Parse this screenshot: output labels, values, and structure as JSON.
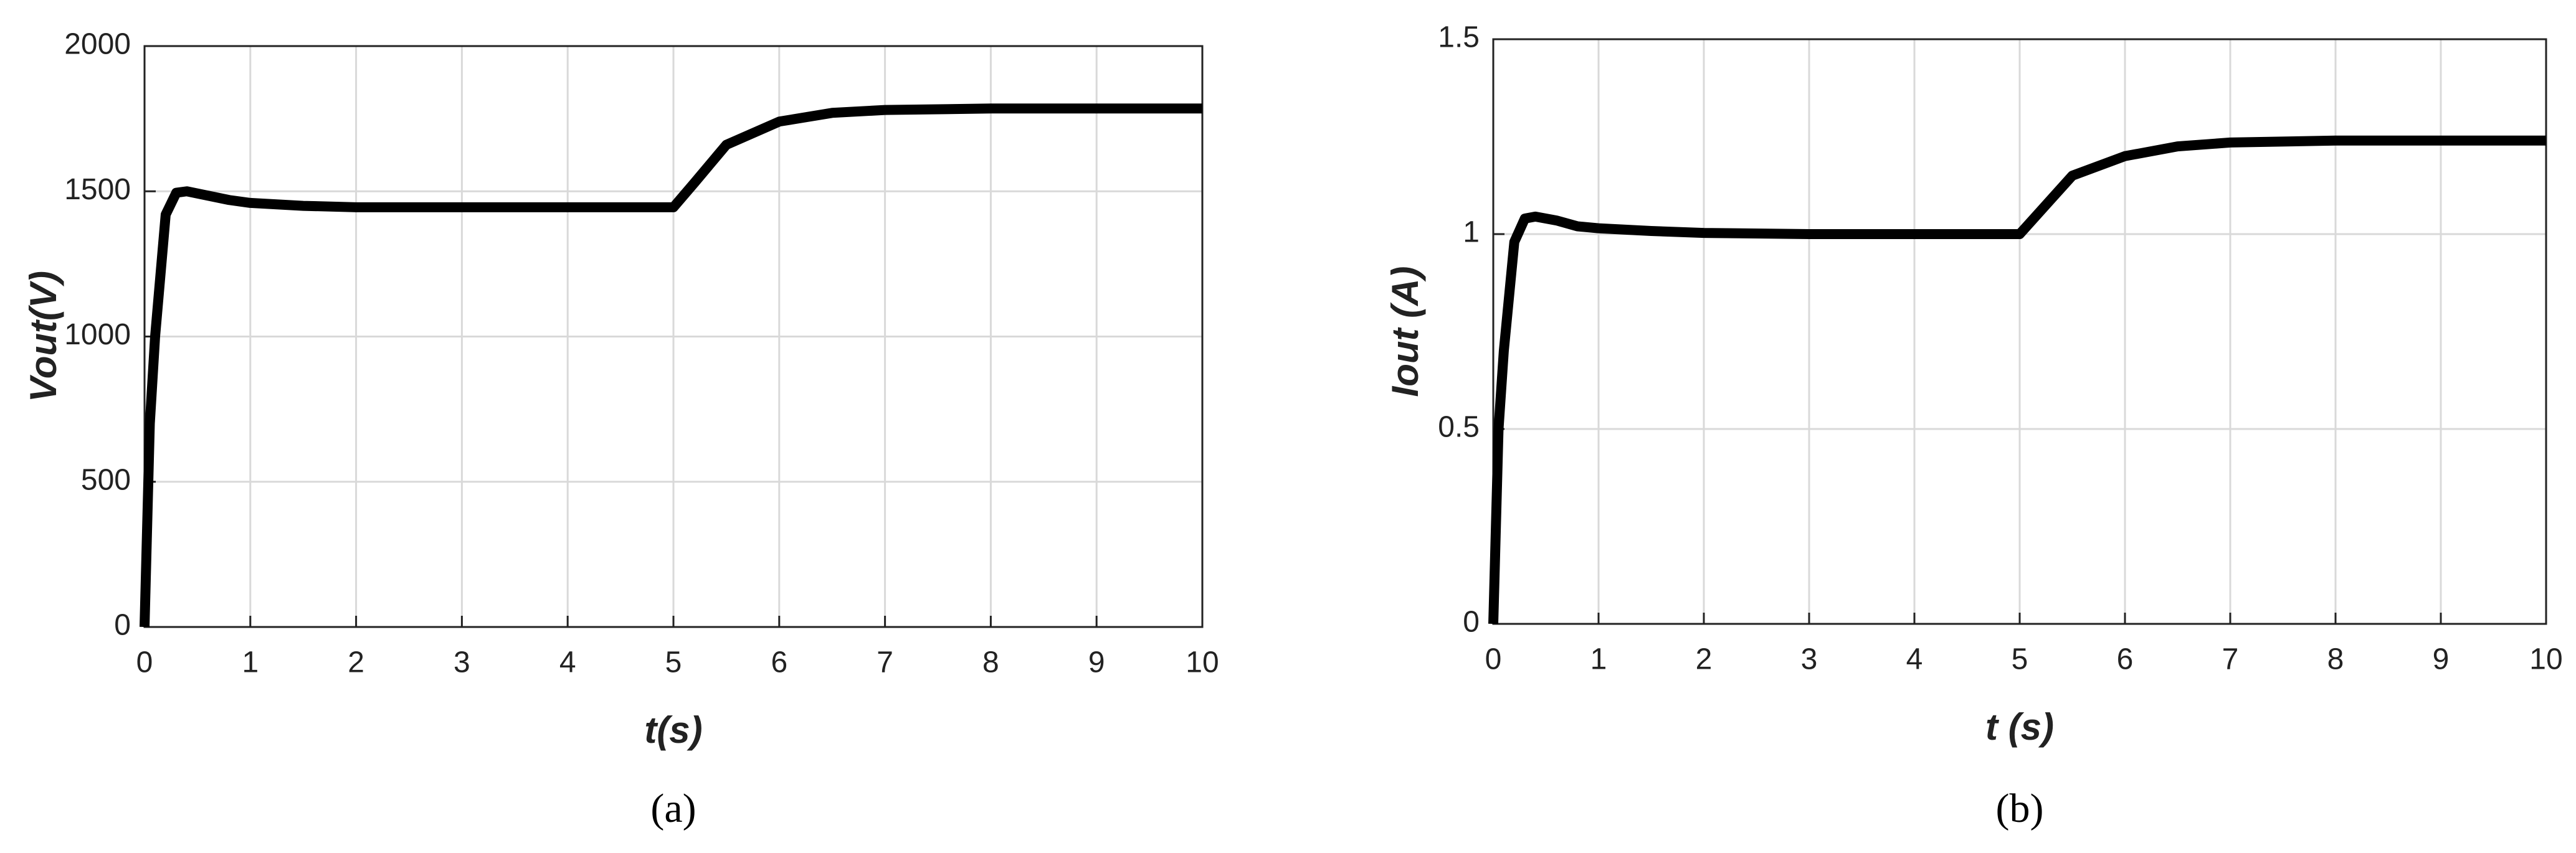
{
  "chart_data": [
    {
      "type": "line",
      "y_label": "Vout(V)",
      "x_label": "t(s)",
      "caption": "(a)",
      "x": [
        0,
        0.05,
        0.1,
        0.2,
        0.3,
        0.4,
        0.6,
        0.8,
        1,
        1.5,
        2,
        3,
        4,
        5,
        5.2,
        5.5,
        6,
        6.5,
        7,
        8,
        9,
        10
      ],
      "series": [
        {
          "color": "#000000",
          "values": [
            0,
            700,
            1000,
            1420,
            1495,
            1500,
            1485,
            1470,
            1460,
            1450,
            1445,
            1445,
            1445,
            1445,
            1530,
            1660,
            1740,
            1770,
            1780,
            1785,
            1785,
            1785
          ]
        }
      ],
      "xlim": [
        0,
        10
      ],
      "xticks": [
        0,
        1,
        2,
        3,
        4,
        5,
        6,
        7,
        8,
        9,
        10
      ],
      "ylim": [
        0,
        2000
      ],
      "yticks": [
        0,
        500,
        1000,
        1500,
        2000
      ],
      "grid": true
    },
    {
      "type": "line",
      "y_label": "Iout (A)",
      "x_label": "t (s)",
      "caption": "(b)",
      "x": [
        0,
        0.05,
        0.1,
        0.2,
        0.3,
        0.4,
        0.6,
        0.8,
        1,
        1.5,
        2,
        3,
        4,
        5,
        5.2,
        5.5,
        6,
        6.5,
        7,
        8,
        9,
        10
      ],
      "series": [
        {
          "color": "#000000",
          "values": [
            0,
            0.5,
            0.7,
            0.98,
            1.04,
            1.045,
            1.035,
            1.02,
            1.015,
            1.008,
            1.003,
            1.0,
            1.0,
            1.0,
            1.06,
            1.15,
            1.2,
            1.225,
            1.235,
            1.24,
            1.24,
            1.24
          ]
        }
      ],
      "xlim": [
        0,
        10
      ],
      "xticks": [
        0,
        1,
        2,
        3,
        4,
        5,
        6,
        7,
        8,
        9,
        10
      ],
      "ylim": [
        0,
        1.5
      ],
      "yticks": [
        0,
        0.5,
        1,
        1.5
      ],
      "grid": true
    }
  ]
}
